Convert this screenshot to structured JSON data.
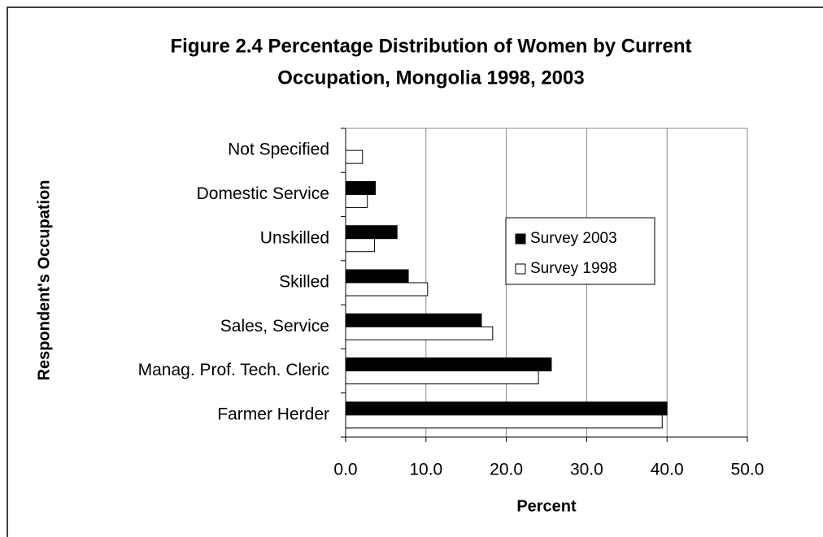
{
  "chart_data": {
    "type": "hbar",
    "title": [
      "Figure 2.4 Percentage Distribution of Women by Current",
      "Occupation, Mongolia 1998, 2003"
    ],
    "x_label": "Percent",
    "y_label": "Respondent's Occupation",
    "categories": [
      "Not Specified",
      "Domestic Service",
      "Unskilled",
      "Skilled",
      "Sales, Service",
      "Manag. Prof. Tech. Cleric",
      "Farmer Herder"
    ],
    "series": [
      {
        "name": "Survey 2003",
        "color": "#000000",
        "values": [
          0,
          3.7,
          6.4,
          7.8,
          16.9,
          25.6,
          40.0
        ]
      },
      {
        "name": "Survey 1998",
        "color": "#ffffff",
        "values": [
          2.1,
          2.7,
          3.6,
          10.2,
          18.3,
          24.0,
          39.4
        ]
      }
    ],
    "xlim": [
      0,
      50
    ],
    "xticks": [
      {
        "value": 0,
        "label": "0.0"
      },
      {
        "value": 10,
        "label": "10.0"
      },
      {
        "value": 20,
        "label": "20.0"
      },
      {
        "value": 30,
        "label": "30.0"
      },
      {
        "value": 40,
        "label": "40.0"
      },
      {
        "value": 50,
        "label": "50.0"
      }
    ],
    "grid": true
  }
}
